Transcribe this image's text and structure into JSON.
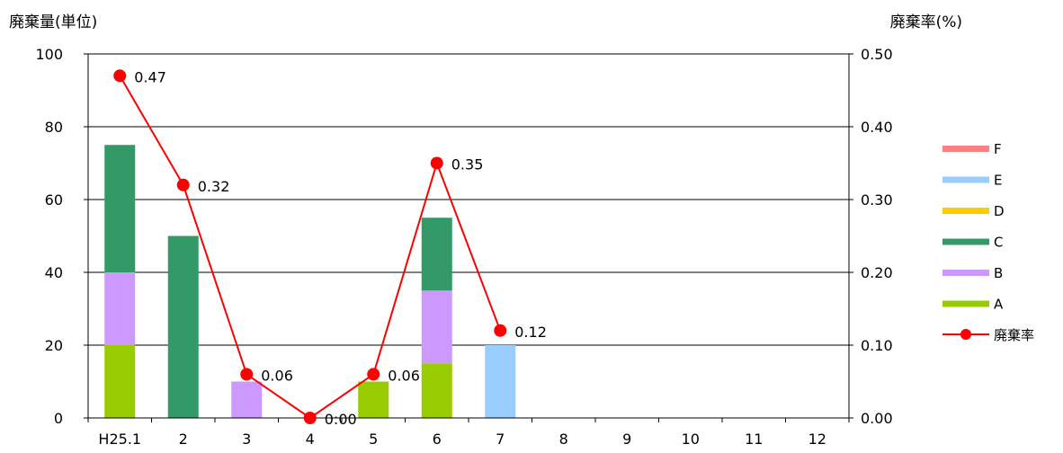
{
  "chart_data": {
    "type": "bar",
    "stacked": true,
    "y_title": "廃棄量(単位)",
    "y2_title": "廃棄率(%)",
    "categories": [
      "H25.1",
      "2",
      "3",
      "4",
      "5",
      "6",
      "7",
      "8",
      "9",
      "10",
      "11",
      "12"
    ],
    "ylim": [
      0,
      100
    ],
    "yticks": [
      "0",
      "20",
      "40",
      "60",
      "80",
      "100"
    ],
    "y2lim": [
      0,
      0.5
    ],
    "y2ticks": [
      "0.00",
      "0.10",
      "0.20",
      "0.30",
      "0.40",
      "0.50"
    ],
    "grid": true,
    "legend_position": "right",
    "series": [
      {
        "name": "A",
        "color": "#99CC00",
        "values": [
          20,
          0,
          0,
          0,
          10,
          15,
          0,
          0,
          0,
          0,
          0,
          0
        ]
      },
      {
        "name": "B",
        "color": "#CC99FF",
        "values": [
          20,
          0,
          10,
          0,
          0,
          20,
          0,
          0,
          0,
          0,
          0,
          0
        ]
      },
      {
        "name": "C",
        "color": "#339966",
        "values": [
          35,
          50,
          0,
          0,
          0,
          20,
          0,
          0,
          0,
          0,
          0,
          0
        ]
      },
      {
        "name": "D",
        "color": "#FFCC00",
        "values": [
          0,
          0,
          0,
          0,
          0,
          0,
          0,
          0,
          0,
          0,
          0,
          0
        ]
      },
      {
        "name": "E",
        "color": "#99CCFF",
        "values": [
          0,
          0,
          0,
          0,
          0,
          0,
          20,
          0,
          0,
          0,
          0,
          0
        ]
      },
      {
        "name": "F",
        "color": "#FF8080",
        "values": [
          0,
          0,
          0,
          0,
          0,
          0,
          0,
          0,
          0,
          0,
          0,
          0
        ]
      }
    ],
    "line_series": {
      "name": "廃棄率",
      "color": "#FF0000",
      "axis": "secondary",
      "values": [
        0.47,
        0.32,
        0.06,
        0.0,
        0.06,
        0.35,
        0.12
      ],
      "labels": [
        "0.47",
        "0.32",
        "0.06",
        "0:00",
        "0.06",
        "0.35",
        "0.12"
      ]
    },
    "legend_order": [
      "F",
      "E",
      "D",
      "C",
      "B",
      "A",
      "廃棄率"
    ]
  }
}
